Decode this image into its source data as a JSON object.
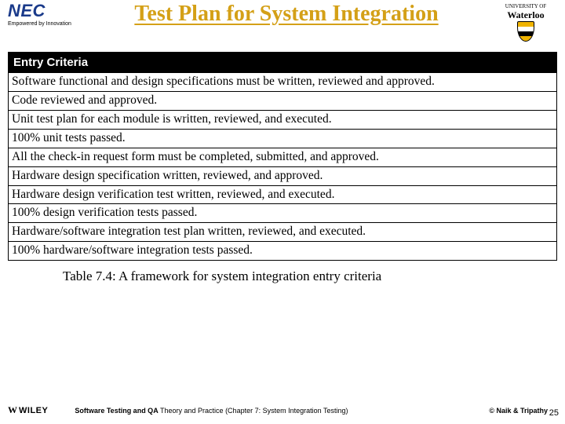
{
  "colors": {
    "title": "#d4a017",
    "nec_blue": "#1a3a8a",
    "table_header_bg": "#000000",
    "table_header_fg": "#ffffff",
    "table_border": "#000000",
    "text": "#000000",
    "background": "#ffffff"
  },
  "logos": {
    "nec": {
      "text": "NEC",
      "tagline": "Empowered by Innovation"
    },
    "waterloo": {
      "top": "UNIVERSITY OF",
      "name": "Waterloo"
    },
    "wiley": {
      "mark": "W",
      "name": "WILEY"
    }
  },
  "title": "Test Plan for System Integration",
  "table": {
    "header": "Entry Criteria",
    "rows": [
      "Software functional and design specifications must be written, reviewed and approved.",
      "Code reviewed and approved.",
      "Unit test plan for each module is written, reviewed, and executed.",
      "100% unit tests passed.",
      "All the check-in request form must be completed, submitted, and approved.",
      "Hardware design specification written, reviewed, and approved.",
      "Hardware design verification test written, reviewed, and executed.",
      "100% design verification tests passed.",
      "Hardware/software integration test plan written, reviewed, and executed.",
      "100% hardware/software integration tests passed."
    ]
  },
  "caption": "Table 7.4: A framework for system integration entry criteria",
  "footer": {
    "center_bold": "Software Testing and QA",
    "center_rest": " Theory and Practice (Chapter 7: System Integration Testing)",
    "right": "© Naik & Tripathy"
  },
  "page_number": "25"
}
